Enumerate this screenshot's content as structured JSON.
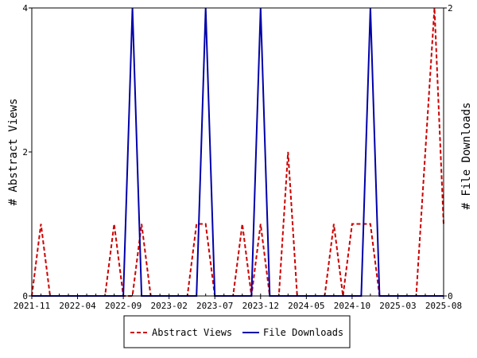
{
  "chart_data": {
    "type": "line",
    "ylabel_left": "# Abstract Views",
    "ylabel_right": "# File Downloads",
    "x_tick_labels": [
      "2021-11",
      "2022-04",
      "2022-09",
      "2023-02",
      "2023-07",
      "2023-12",
      "2024-05",
      "2024-10",
      "2025-03",
      "2025-08"
    ],
    "x_range": [
      "2021-11",
      "2025-08"
    ],
    "ylim_left": [
      0,
      4
    ],
    "ylim_right": [
      0,
      2
    ],
    "y_ticks_left": [
      0,
      2,
      4
    ],
    "y_ticks_right": [
      0,
      2
    ],
    "grid": false,
    "legend_position": "bottom",
    "series": [
      {
        "name": "Abstract Views",
        "axis": "left",
        "color": "#cc0000",
        "style": "dashed",
        "points": [
          [
            "2021-11",
            0
          ],
          [
            "2021-12",
            1
          ],
          [
            "2022-01",
            0
          ],
          [
            "2022-02",
            0
          ],
          [
            "2022-03",
            0
          ],
          [
            "2022-04",
            0
          ],
          [
            "2022-05",
            0
          ],
          [
            "2022-06",
            0
          ],
          [
            "2022-07",
            0
          ],
          [
            "2022-08",
            1
          ],
          [
            "2022-09",
            0
          ],
          [
            "2022-10",
            0
          ],
          [
            "2022-11",
            1
          ],
          [
            "2022-12",
            0
          ],
          [
            "2023-01",
            0
          ],
          [
            "2023-02",
            0
          ],
          [
            "2023-03",
            0
          ],
          [
            "2023-04",
            0
          ],
          [
            "2023-05",
            1
          ],
          [
            "2023-06",
            1
          ],
          [
            "2023-07",
            0
          ],
          [
            "2023-08",
            0
          ],
          [
            "2023-09",
            0
          ],
          [
            "2023-10",
            1
          ],
          [
            "2023-11",
            0
          ],
          [
            "2023-12",
            1
          ],
          [
            "2024-01",
            0
          ],
          [
            "2024-02",
            0
          ],
          [
            "2024-03",
            2
          ],
          [
            "2024-04",
            0
          ],
          [
            "2024-05",
            0
          ],
          [
            "2024-06",
            0
          ],
          [
            "2024-07",
            0
          ],
          [
            "2024-08",
            1
          ],
          [
            "2024-09",
            0
          ],
          [
            "2024-10",
            1
          ],
          [
            "2024-11",
            1
          ],
          [
            "2024-12",
            1
          ],
          [
            "2025-01",
            0
          ],
          [
            "2025-02",
            0
          ],
          [
            "2025-03",
            0
          ],
          [
            "2025-04",
            0
          ],
          [
            "2025-05",
            0
          ],
          [
            "2025-06",
            2
          ],
          [
            "2025-07",
            4
          ],
          [
            "2025-08",
            1
          ]
        ]
      },
      {
        "name": "File Downloads",
        "axis": "right",
        "color": "#0000aa",
        "style": "solid",
        "points": [
          [
            "2021-11",
            0
          ],
          [
            "2021-12",
            0
          ],
          [
            "2022-01",
            0
          ],
          [
            "2022-02",
            0
          ],
          [
            "2022-03",
            0
          ],
          [
            "2022-04",
            0
          ],
          [
            "2022-05",
            0
          ],
          [
            "2022-06",
            0
          ],
          [
            "2022-07",
            0
          ],
          [
            "2022-08",
            0
          ],
          [
            "2022-09",
            0
          ],
          [
            "2022-10",
            2
          ],
          [
            "2022-11",
            0
          ],
          [
            "2022-12",
            0
          ],
          [
            "2023-01",
            0
          ],
          [
            "2023-02",
            0
          ],
          [
            "2023-03",
            0
          ],
          [
            "2023-04",
            0
          ],
          [
            "2023-05",
            0
          ],
          [
            "2023-06",
            2
          ],
          [
            "2023-07",
            0
          ],
          [
            "2023-08",
            0
          ],
          [
            "2023-09",
            0
          ],
          [
            "2023-10",
            0
          ],
          [
            "2023-11",
            0
          ],
          [
            "2023-12",
            2
          ],
          [
            "2024-01",
            0
          ],
          [
            "2024-02",
            0
          ],
          [
            "2024-03",
            0
          ],
          [
            "2024-04",
            0
          ],
          [
            "2024-05",
            0
          ],
          [
            "2024-06",
            0
          ],
          [
            "2024-07",
            0
          ],
          [
            "2024-08",
            0
          ],
          [
            "2024-09",
            0
          ],
          [
            "2024-10",
            0
          ],
          [
            "2024-11",
            0
          ],
          [
            "2024-12",
            2
          ],
          [
            "2025-01",
            0
          ],
          [
            "2025-02",
            0
          ],
          [
            "2025-03",
            0
          ],
          [
            "2025-04",
            0
          ],
          [
            "2025-05",
            0
          ],
          [
            "2025-06",
            0
          ],
          [
            "2025-07",
            0
          ],
          [
            "2025-08",
            0
          ]
        ]
      }
    ]
  }
}
